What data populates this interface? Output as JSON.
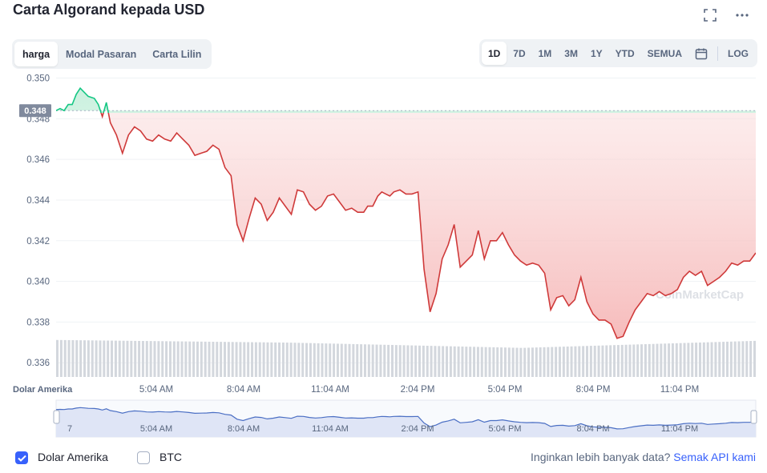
{
  "header": {
    "title": "Carta Algorand kepada USD",
    "icons": [
      "fullscreen-icon",
      "more-icon"
    ]
  },
  "tabs": [
    {
      "label": "harga",
      "active": true
    },
    {
      "label": "Modal Pasaran",
      "active": false
    },
    {
      "label": "Carta Lilin",
      "active": false
    }
  ],
  "ranges": [
    {
      "label": "1D",
      "active": true
    },
    {
      "label": "7D",
      "active": false
    },
    {
      "label": "1M",
      "active": false
    },
    {
      "label": "3M",
      "active": false
    },
    {
      "label": "1Y",
      "active": false
    },
    {
      "label": "YTD",
      "active": false
    },
    {
      "label": "SEMUA",
      "active": false
    }
  ],
  "log_label": "LOG",
  "footer": {
    "usd_label": "Dolar Amerika",
    "usd_checked": true,
    "btc_label": "BTC",
    "btc_checked": false,
    "api_prompt": "Inginkan lebih banyak data?",
    "api_link": "Semak API kami"
  },
  "chart_data": {
    "type": "line",
    "y_ticks": [
      "0.350",
      "0.348",
      "0.346",
      "0.344",
      "0.342",
      "0.340",
      "0.338",
      "0.336"
    ],
    "ylim": [
      0.3353,
      0.3501
    ],
    "x_ticks": [
      "7",
      "5:04 AM",
      "8:04 AM",
      "11:04 AM",
      "2:04 PM",
      "5:04 PM",
      "8:04 PM",
      "11:04 PM"
    ],
    "x_axis_label": "Dolar Amerika",
    "reference_value": 0.3484,
    "reference_label": "0.348",
    "watermark": "CoinMarketCap",
    "colors": {
      "up": "#16c784",
      "down": "#cf3a3a",
      "fill_down": "#f6b8b8",
      "grid": "#eff2f5",
      "volume": "#d3d7dd",
      "nav_line": "#4b6fc4",
      "nav_fill": "#dfe5f6"
    },
    "x_hours": [
      0,
      0.2,
      0.4,
      0.6,
      0.8,
      1.0,
      1.2,
      1.4,
      1.6,
      1.9,
      2.1,
      2.3,
      2.5,
      2.7,
      3.0,
      3.3,
      3.6,
      3.9,
      4.2,
      4.5,
      4.8,
      5.1,
      5.4,
      5.7,
      6.0,
      6.3,
      6.6,
      6.9,
      7.2,
      7.5,
      7.8,
      8.1,
      8.4,
      8.7,
      9.0,
      9.3,
      9.6,
      9.9,
      10.2,
      10.5,
      10.8,
      11.1,
      11.4,
      11.7,
      12.0,
      12.3,
      12.6,
      12.9,
      13.2,
      13.5,
      13.8,
      14.1,
      14.4,
      14.7,
      15.0,
      15.3,
      15.5,
      15.75,
      16.0,
      16.2,
      16.4,
      16.6,
      16.8,
      17.1,
      17.4,
      17.7,
      18.0,
      18.3,
      18.6,
      18.9,
      19.2,
      19.5,
      19.8,
      20.1,
      20.4,
      20.7,
      21.0,
      21.3,
      21.6,
      21.9,
      22.2,
      22.5,
      22.8,
      23.1,
      23.4,
      23.7,
      24.0,
      24.3,
      24.6,
      24.9,
      25.2,
      25.5,
      25.8,
      26.1,
      26.4,
      26.7,
      27.0,
      27.3,
      27.6,
      27.9,
      28.2,
      28.5,
      28.8,
      29.1,
      29.4,
      29.7,
      30.0,
      30.3,
      30.6,
      30.9,
      31.2,
      31.5,
      31.8,
      32.1,
      32.4,
      32.7,
      33.0,
      33.3,
      33.6,
      33.9,
      34.2,
      34.5,
      34.8
    ],
    "price": [
      0.3484,
      0.3485,
      0.3484,
      0.3487,
      0.3487,
      0.3492,
      0.3495,
      0.3493,
      0.3491,
      0.349,
      0.3487,
      0.3481,
      0.3488,
      0.3478,
      0.3472,
      0.3463,
      0.3472,
      0.3476,
      0.3474,
      0.347,
      0.3469,
      0.3472,
      0.347,
      0.3469,
      0.3473,
      0.347,
      0.3467,
      0.3462,
      0.3463,
      0.3464,
      0.3467,
      0.3465,
      0.3456,
      0.3452,
      0.3428,
      0.342,
      0.3431,
      0.3441,
      0.3438,
      0.343,
      0.3434,
      0.3441,
      0.3437,
      0.3433,
      0.3445,
      0.3444,
      0.3438,
      0.3435,
      0.3437,
      0.3442,
      0.3443,
      0.3439,
      0.3435,
      0.3436,
      0.3434,
      0.3434,
      0.3437,
      0.3437,
      0.3442,
      0.3444,
      0.3443,
      0.3442,
      0.3444,
      0.3445,
      0.3443,
      0.3443,
      0.3444,
      0.3406,
      0.3385,
      0.3394,
      0.3411,
      0.3418,
      0.3428,
      0.3407,
      0.341,
      0.3413,
      0.3425,
      0.3411,
      0.342,
      0.342,
      0.3424,
      0.3418,
      0.3413,
      0.341,
      0.3408,
      0.3409,
      0.3408,
      0.3404,
      0.3386,
      0.3392,
      0.3393,
      0.3388,
      0.3391,
      0.3402,
      0.339,
      0.3384,
      0.3381,
      0.3381,
      0.3379,
      0.3372,
      0.3373,
      0.338,
      0.3386,
      0.339,
      0.3394,
      0.3393,
      0.3395,
      0.3393,
      0.3394,
      0.3396,
      0.3402,
      0.3405,
      0.3403,
      0.3405,
      0.3398,
      0.34,
      0.3402,
      0.3405,
      0.3409,
      0.3408,
      0.341,
      0.341,
      0.3414
    ],
    "volume_level": [
      0.84,
      0.78,
      0.66,
      0.82
    ]
  }
}
